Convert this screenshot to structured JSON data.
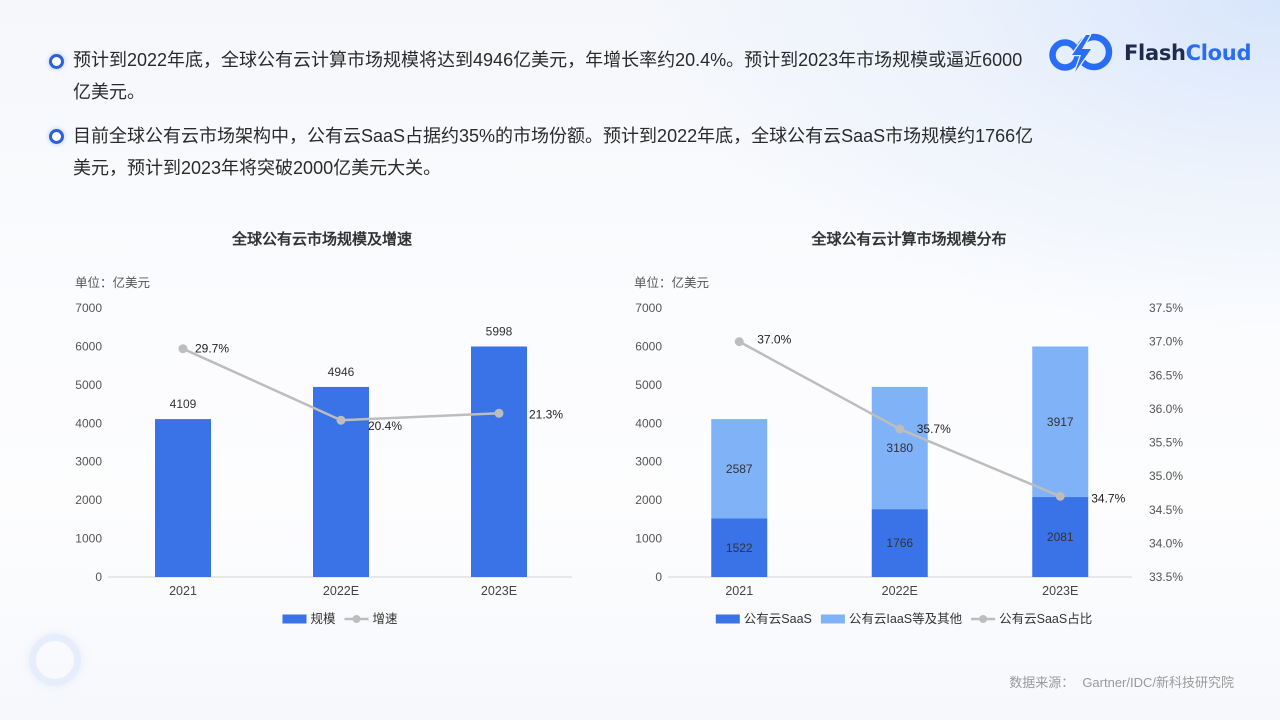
{
  "logo": {
    "icon": "flashcloud-logo-icon",
    "name_part1": "Flash",
    "name_part2": "Cloud",
    "color_dark": "#1e2b4f",
    "color_accent": "#2a6df5"
  },
  "bullets": [
    {
      "icon": "circle-bullet-icon",
      "text": "预计到2022年底，全球公有云计算市场规模将达到4946亿美元，年增长率约20.4%。预计到2023年市场规模或逼近6000亿美元。"
    },
    {
      "icon": "circle-bullet-icon",
      "text": "目前全球公有云市场架构中，公有云SaaS占据约35%的市场份额。预计到2022年底，全球公有云SaaS市场规模约1766亿美元，预计到2023年将突破2000亿美元大关。"
    }
  ],
  "chart_data": [
    {
      "type": "bar",
      "title": "全球公有云市场规模及增速",
      "unit_label": "单位：亿美元",
      "categories": [
        "2021",
        "2022E",
        "2023E"
      ],
      "ylim": [
        0,
        7000
      ],
      "yticks": [
        "0",
        "1000",
        "2000",
        "3000",
        "4000",
        "5000",
        "6000",
        "7000"
      ],
      "grid": false,
      "legend": "bottom",
      "series": [
        {
          "name": "规模",
          "type": "bar",
          "color": "#3a72e8",
          "values": [
            4109,
            4946,
            5998
          ]
        },
        {
          "name": "增速",
          "type": "line",
          "color": "#bdbdbd",
          "values": [
            29.7,
            20.4,
            21.3
          ],
          "data_labels": [
            "29.7%",
            "20.4%",
            "21.3%"
          ]
        }
      ]
    },
    {
      "type": "bar",
      "stacked": true,
      "title": "全球公有云计算市场规模分布",
      "unit_label": "单位：亿美元",
      "categories": [
        "2021",
        "2022E",
        "2023E"
      ],
      "ylim": [
        0,
        7000
      ],
      "yticks": [
        "0",
        "1000",
        "2000",
        "3000",
        "4000",
        "5000",
        "6000",
        "7000"
      ],
      "y2lim": [
        33.5,
        37.5
      ],
      "y2ticks": [
        "33.5%",
        "34.0%",
        "34.5%",
        "35.0%",
        "35.5%",
        "36.0%",
        "36.5%",
        "37.0%",
        "37.5%"
      ],
      "grid": false,
      "legend": "bottom",
      "series": [
        {
          "name": "公有云SaaS",
          "type": "bar",
          "color": "#3a72e8",
          "label_color": "#ffffff",
          "values": [
            1522,
            1766,
            2081
          ]
        },
        {
          "name": "公有云IaaS等及其他",
          "type": "bar",
          "color": "#7fb2f6",
          "label_color": "#333333",
          "values": [
            2587,
            3180,
            3917
          ]
        },
        {
          "name": "公有云SaaS占比",
          "type": "line",
          "axis": "right",
          "color": "#bdbdbd",
          "values": [
            37.0,
            35.7,
            34.7
          ],
          "data_labels": [
            "37.0%",
            "35.7%",
            "34.7%"
          ]
        }
      ]
    }
  ],
  "source": {
    "label": "数据来源：",
    "value": "Gartner/IDC/新科技研究院"
  }
}
